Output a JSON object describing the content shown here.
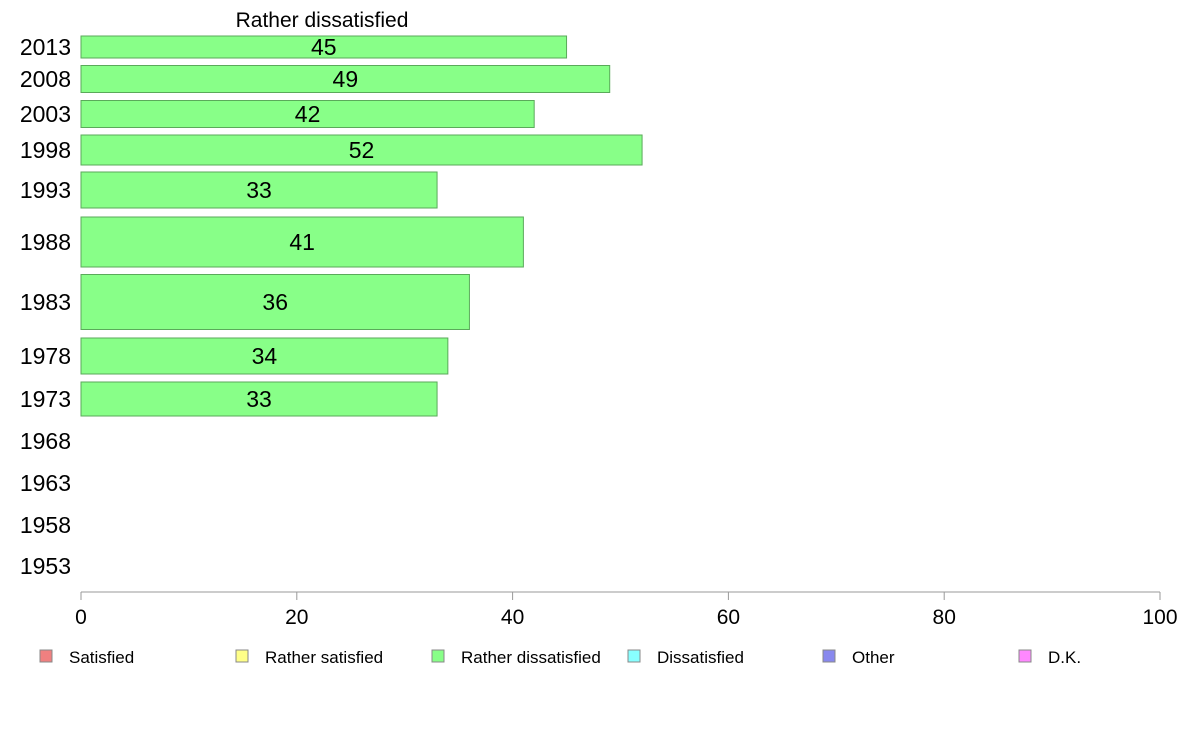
{
  "chart_data": {
    "type": "bar",
    "orientation": "horizontal",
    "title": "Rather dissatisfied",
    "categories": [
      "2013",
      "2008",
      "2003",
      "1998",
      "1993",
      "1988",
      "1983",
      "1978",
      "1973",
      "1968",
      "1963",
      "1958",
      "1953"
    ],
    "series": [
      {
        "name": "Rather dissatisfied",
        "values": [
          45,
          49,
          42,
          52,
          33,
          41,
          36,
          34,
          33,
          null,
          null,
          null,
          null
        ]
      }
    ],
    "xlim": [
      0,
      100
    ],
    "xticks": [
      0,
      20,
      40,
      60,
      80,
      100
    ],
    "grid": false,
    "bar_color": "#88ff88",
    "bar_stroke": "#5aaa5a",
    "legend_position": "bottom",
    "legend": [
      {
        "label": "Satisfied",
        "color": "#f08080"
      },
      {
        "label": "Rather satisfied",
        "color": "#ffff88"
      },
      {
        "label": "Rather dissatisfied",
        "color": "#88ff88"
      },
      {
        "label": "Dissatisfied",
        "color": "#88ffff"
      },
      {
        "label": "Other",
        "color": "#8888ee"
      },
      {
        "label": "D.K.",
        "color": "#ff88ff"
      }
    ]
  }
}
